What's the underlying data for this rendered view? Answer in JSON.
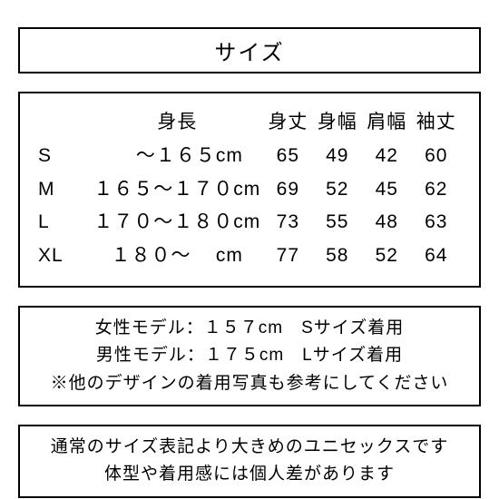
{
  "title": "サイズ",
  "table": {
    "header": {
      "height": "身長",
      "c1": "身丈",
      "c2": "身幅",
      "c3": "肩幅",
      "c4": "袖丈"
    },
    "rows": [
      {
        "size": "S",
        "height": "    ～１６５cm",
        "c1": "65",
        "c2": "49",
        "c3": "42",
        "c4": "60"
      },
      {
        "size": "M",
        "height": "１６５～１７０cm",
        "c1": "69",
        "c2": "52",
        "c3": "45",
        "c4": "62"
      },
      {
        "size": "L",
        "height": "１７０～１８０cm",
        "c1": "73",
        "c2": "55",
        "c3": "48",
        "c4": "63"
      },
      {
        "size": "XL",
        "height": "１８０～    cm",
        "c1": "77",
        "c2": "58",
        "c3": "52",
        "c4": "64"
      }
    ]
  },
  "info1": {
    "line1": "女性モデル：１５７cm　Sサイズ着用",
    "line2": "男性モデル：１７５cm　Lサイズ着用",
    "line3": "※他のデザインの着用写真も参考にしてください"
  },
  "info2": {
    "line1": "通常のサイズ表記より大きめのユニセックスです",
    "line2": "体型や着用感には個人差があります"
  },
  "styling": {
    "background": "#ffffff",
    "border_color": "#000000",
    "border_width": 2,
    "title_fontsize": 24,
    "table_fontsize": 21,
    "info_fontsize": 19
  }
}
